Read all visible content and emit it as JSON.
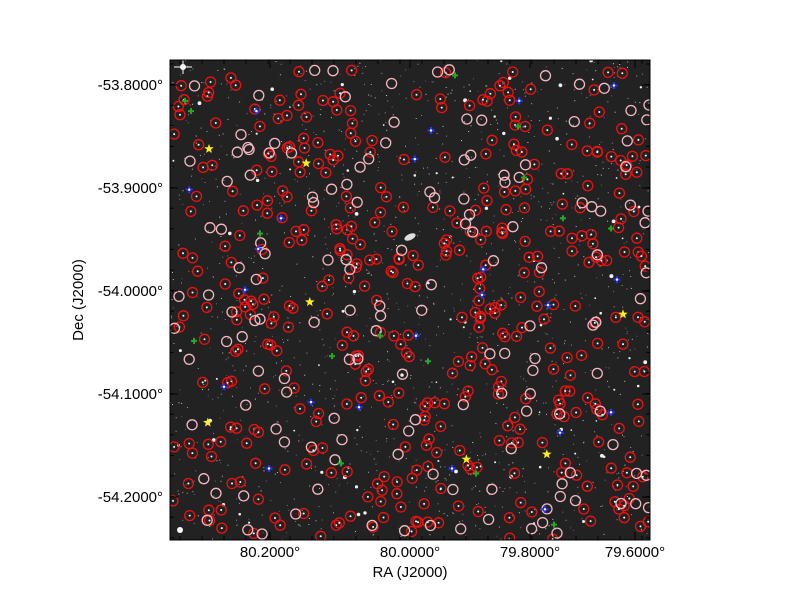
{
  "figure": {
    "xlabel": "RA (J2000)",
    "ylabel": "Dec (J2000)",
    "x_ticks": [
      {
        "value": 80.2,
        "label": "80.2000°"
      },
      {
        "value": 80.0,
        "label": "80.0000°"
      },
      {
        "value": 79.8,
        "label": "79.8000°"
      },
      {
        "value": 79.6,
        "label": "79.6000°"
      }
    ],
    "y_ticks": [
      {
        "value": -53.8,
        "label": "-53.8000°"
      },
      {
        "value": -53.9,
        "label": "-53.9000°"
      },
      {
        "value": -54.0,
        "label": "-54.0000°"
      },
      {
        "value": -54.1,
        "label": "-54.1000°"
      },
      {
        "value": -54.2,
        "label": "-54.2000°"
      }
    ],
    "ra_range": [
      80.38,
      79.58
    ],
    "dec_range": [
      -53.775,
      -54.245
    ],
    "colors": {
      "background": "#222222",
      "red_circle": "#ee1111",
      "pink_circle": "#f4b8c0",
      "blue_marker": "#2233ff",
      "green_marker": "#22aa22",
      "yellow_star": "#ffee22",
      "axis": "#000000"
    },
    "markers": {
      "yellow_stars": [
        [
          80.315,
          -53.862
        ],
        [
          80.153,
          -53.876
        ],
        [
          80.147,
          -54.012
        ],
        [
          79.625,
          -54.024
        ],
        [
          80.317,
          -54.13
        ],
        [
          79.752,
          -54.161
        ],
        [
          79.886,
          -54.166
        ]
      ],
      "blue_markers": [
        [
          80.236,
          -53.825
        ],
        [
          80.348,
          -53.902
        ],
        [
          80.195,
          -53.93
        ],
        [
          80.233,
          -53.96
        ],
        [
          79.945,
          -53.844
        ],
        [
          79.972,
          -53.872
        ],
        [
          79.798,
          -53.815
        ],
        [
          79.858,
          -53.98
        ],
        [
          79.64,
          -53.8
        ],
        [
          79.635,
          -53.99
        ],
        [
          79.75,
          -54.015
        ],
        [
          79.86,
          -54.005
        ],
        [
          80.255,
          -54.0
        ],
        [
          80.145,
          -54.11
        ],
        [
          80.065,
          -54.115
        ],
        [
          80.29,
          -54.095
        ],
        [
          80.215,
          -54.175
        ],
        [
          79.91,
          -54.175
        ],
        [
          79.73,
          -54.14
        ],
        [
          79.645,
          -54.12
        ],
        [
          79.755,
          -54.215
        ],
        [
          79.97,
          -54.045
        ]
      ],
      "green_markers": [
        [
          80.355,
          -53.815
        ],
        [
          80.345,
          -53.825
        ],
        [
          79.905,
          -53.79
        ],
        [
          79.8,
          -53.84
        ],
        [
          79.725,
          -53.93
        ],
        [
          79.645,
          -53.94
        ],
        [
          80.23,
          -53.945
        ],
        [
          79.79,
          -53.89
        ],
        [
          80.11,
          -54.065
        ],
        [
          79.95,
          -54.07
        ],
        [
          80.03,
          -54.045
        ],
        [
          80.095,
          -54.17
        ],
        [
          79.74,
          -54.23
        ],
        [
          79.87,
          -54.18
        ],
        [
          80.34,
          -54.05
        ]
      ]
    }
  }
}
